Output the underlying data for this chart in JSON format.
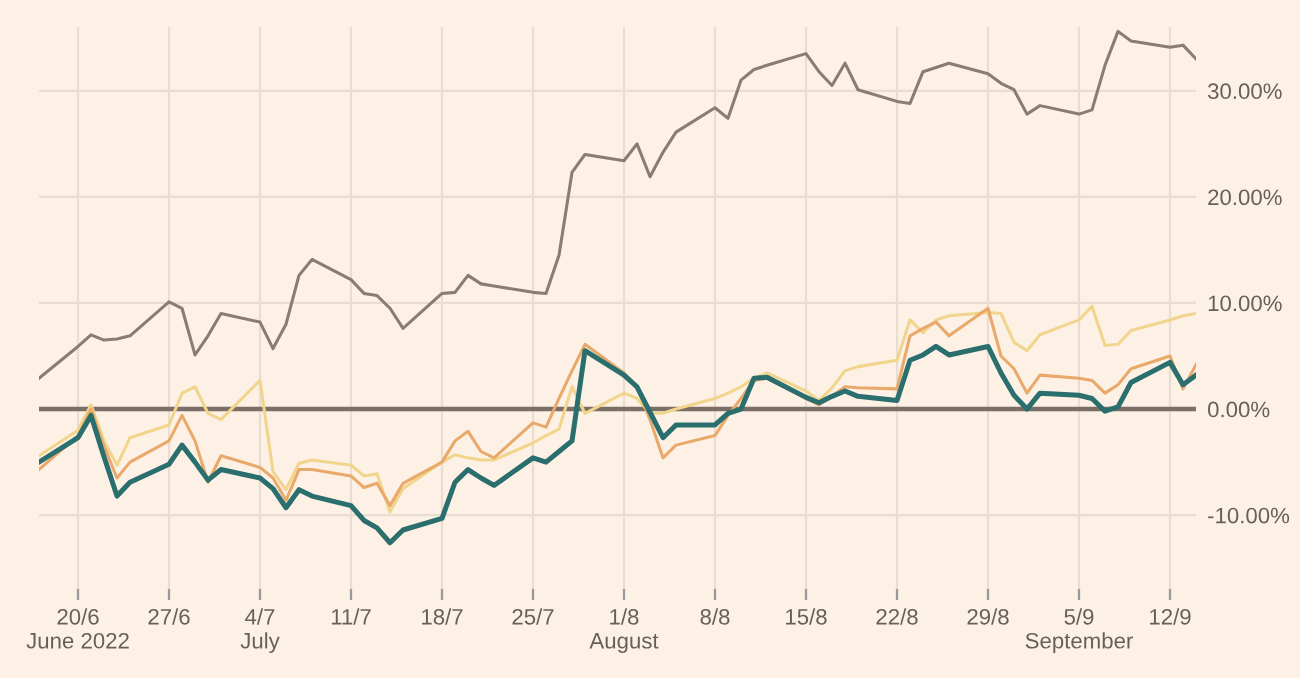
{
  "chart_data": {
    "type": "line",
    "x": [
      "2022-06-17",
      "2022-06-20",
      "2022-06-21",
      "2022-06-22",
      "2022-06-23",
      "2022-06-24",
      "2022-06-27",
      "2022-06-28",
      "2022-06-29",
      "2022-06-30",
      "2022-07-01",
      "2022-07-04",
      "2022-07-05",
      "2022-07-06",
      "2022-07-07",
      "2022-07-08",
      "2022-07-11",
      "2022-07-12",
      "2022-07-13",
      "2022-07-14",
      "2022-07-15",
      "2022-07-18",
      "2022-07-19",
      "2022-07-20",
      "2022-07-21",
      "2022-07-22",
      "2022-07-25",
      "2022-07-26",
      "2022-07-27",
      "2022-07-28",
      "2022-07-29",
      "2022-08-01",
      "2022-08-02",
      "2022-08-03",
      "2022-08-04",
      "2022-08-05",
      "2022-08-08",
      "2022-08-09",
      "2022-08-10",
      "2022-08-11",
      "2022-08-12",
      "2022-08-15",
      "2022-08-16",
      "2022-08-17",
      "2022-08-18",
      "2022-08-19",
      "2022-08-22",
      "2022-08-23",
      "2022-08-24",
      "2022-08-25",
      "2022-08-26",
      "2022-08-29",
      "2022-08-30",
      "2022-08-31",
      "2022-09-01",
      "2022-09-02",
      "2022-09-05",
      "2022-09-06",
      "2022-09-07",
      "2022-09-08",
      "2022-09-09",
      "2022-09-12",
      "2022-09-13",
      "2022-09-14"
    ],
    "series": [
      {
        "color": "#8c7b70",
        "values": [
          2.9,
          5.9,
          7.0,
          6.5,
          6.6,
          6.9,
          10.1,
          9.5,
          5.1,
          6.9,
          9.0,
          8.2,
          5.7,
          8.0,
          12.6,
          14.1,
          12.2,
          10.9,
          10.7,
          9.5,
          7.6,
          10.9,
          11.0,
          12.6,
          11.8,
          11.6,
          11.0,
          10.9,
          14.5,
          22.3,
          24.0,
          23.4,
          25.0,
          21.9,
          24.2,
          26.1,
          28.4,
          27.4,
          31.0,
          32.0,
          32.4,
          33.5,
          31.8,
          30.5,
          32.6,
          30.1,
          29.0,
          28.8,
          31.8,
          32.2,
          32.6,
          31.6,
          30.7,
          30.1,
          27.8,
          28.6,
          27.8,
          28.2,
          32.4,
          35.6,
          34.7,
          34.1,
          34.3,
          33.0
        ]
      },
      {
        "color": "#f2d58c",
        "values": [
          -4.4,
          -2.0,
          0.4,
          -3.0,
          -5.3,
          -2.7,
          -1.5,
          1.5,
          2.1,
          -0.4,
          -1.0,
          2.7,
          -5.9,
          -7.6,
          -5.1,
          -4.8,
          -5.3,
          -6.3,
          -6.1,
          -9.7,
          -7.5,
          -5.0,
          -4.3,
          -4.6,
          -4.8,
          -4.8,
          -3.2,
          -2.5,
          -1.9,
          2.1,
          -0.4,
          1.5,
          1.0,
          -0.4,
          -0.4,
          0.0,
          1.0,
          1.5,
          2.1,
          2.9,
          3.4,
          1.7,
          0.8,
          2.0,
          3.6,
          4.0,
          4.6,
          8.4,
          7.2,
          8.4,
          8.8,
          9.1,
          9.0,
          6.3,
          5.5,
          7.0,
          8.4,
          9.7,
          6.0,
          6.1,
          7.4,
          8.4,
          8.8,
          9.0
        ]
      },
      {
        "color": "#e8a96b",
        "values": [
          -5.7,
          -2.5,
          0.0,
          -3.5,
          -6.5,
          -5.0,
          -3.0,
          -0.6,
          -3.0,
          -6.9,
          -4.4,
          -5.5,
          -6.5,
          -8.6,
          -5.7,
          -5.7,
          -6.3,
          -7.4,
          -7.0,
          -9.1,
          -7.0,
          -5.0,
          -3.0,
          -2.1,
          -4.0,
          -4.6,
          -1.3,
          -1.7,
          1.0,
          3.6,
          6.1,
          3.4,
          2.1,
          -1.0,
          -4.6,
          -3.4,
          -2.5,
          -0.6,
          1.0,
          2.7,
          2.9,
          1.0,
          0.4,
          1.2,
          2.1,
          2.0,
          1.9,
          6.9,
          7.6,
          8.2,
          6.9,
          9.5,
          5.0,
          3.8,
          1.5,
          3.2,
          2.9,
          2.7,
          1.5,
          2.3,
          3.8,
          5.0,
          1.9,
          4.2
        ]
      },
      {
        "color": "#2a6e6e",
        "values": [
          -5.0,
          -2.7,
          -0.6,
          -4.5,
          -8.2,
          -6.9,
          -5.2,
          -3.4,
          -5.0,
          -6.7,
          -5.7,
          -6.5,
          -7.5,
          -9.3,
          -7.6,
          -8.2,
          -9.1,
          -10.5,
          -11.2,
          -12.6,
          -11.4,
          -10.3,
          -6.9,
          -5.7,
          -6.5,
          -7.2,
          -4.6,
          -5.0,
          -4.0,
          -3.0,
          5.5,
          3.2,
          2.1,
          -0.3,
          -2.7,
          -1.5,
          -1.5,
          -0.4,
          0.0,
          2.9,
          3.0,
          1.1,
          0.6,
          1.2,
          1.7,
          1.2,
          0.8,
          4.6,
          5.1,
          5.9,
          5.1,
          5.9,
          3.4,
          1.3,
          0.0,
          1.5,
          1.3,
          1.0,
          -0.2,
          0.2,
          2.5,
          4.4,
          2.3,
          3.2
        ]
      }
    ],
    "xlim": [
      "2022-06-17",
      "2022-09-14"
    ],
    "xticks": [
      {
        "value": "2022-06-20",
        "label": "20/6\nJune 2022"
      },
      {
        "value": "2022-06-27",
        "label": "27/6"
      },
      {
        "value": "2022-07-04",
        "label": "4/7\nJuly"
      },
      {
        "value": "2022-07-11",
        "label": "11/7"
      },
      {
        "value": "2022-07-18",
        "label": "18/7"
      },
      {
        "value": "2022-07-25",
        "label": "25/7"
      },
      {
        "value": "2022-08-01",
        "label": "1/8\nAugust"
      },
      {
        "value": "2022-08-08",
        "label": "8/8"
      },
      {
        "value": "2022-08-15",
        "label": "15/8"
      },
      {
        "value": "2022-08-22",
        "label": "22/8"
      },
      {
        "value": "2022-08-29",
        "label": "29/8"
      },
      {
        "value": "2022-09-05",
        "label": "5/9\nSeptember"
      },
      {
        "value": "2022-09-12",
        "label": "12/9"
      }
    ],
    "ylim": [
      -18,
      36
    ],
    "yticks": [
      {
        "value": -10,
        "label": "-10.00%"
      },
      {
        "value": 0,
        "label": "0.00%"
      },
      {
        "value": 10,
        "label": "10.00%"
      },
      {
        "value": 20,
        "label": "20.00%"
      },
      {
        "value": 30,
        "label": "30.00%"
      }
    ],
    "ref_lines": [
      {
        "axis": "y",
        "value": 0,
        "color": "#7a6e66"
      }
    ],
    "grid": true
  }
}
